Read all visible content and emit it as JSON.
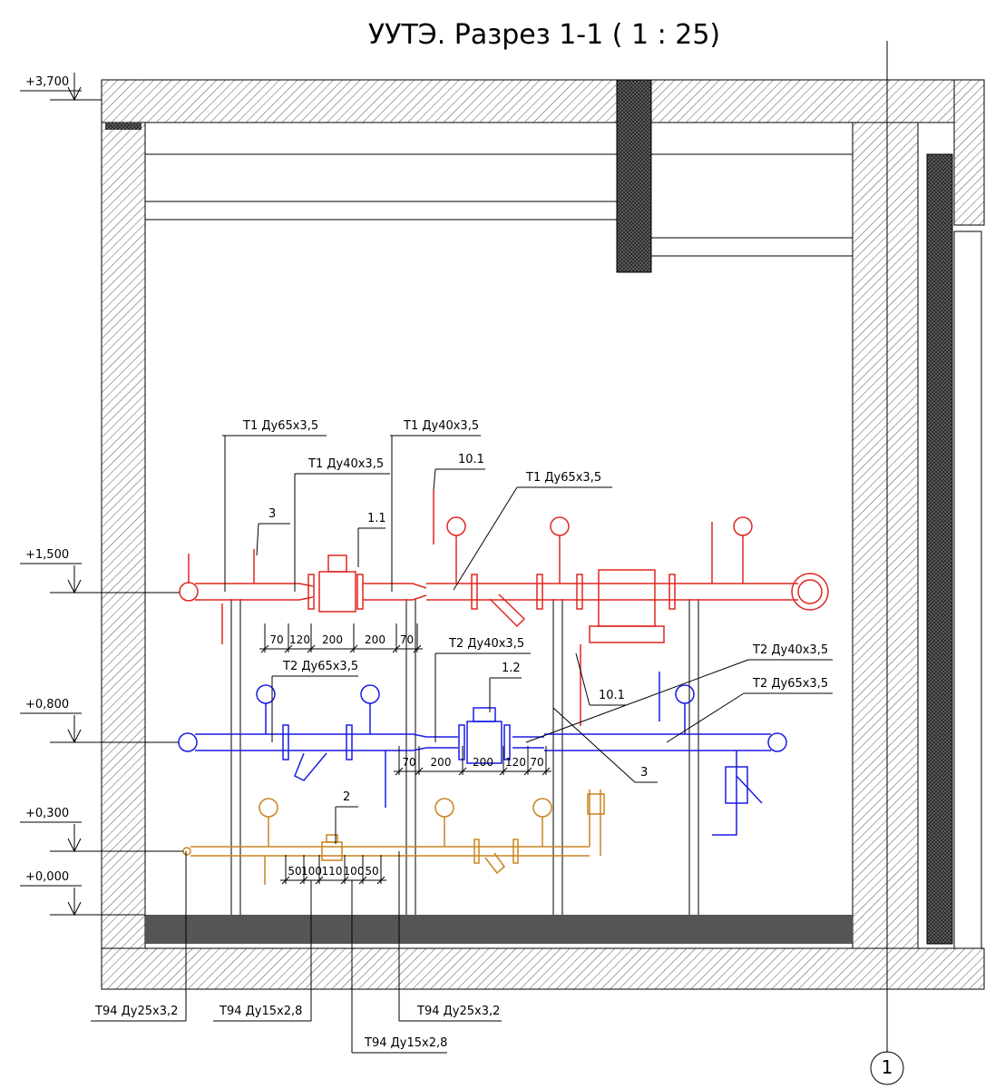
{
  "header": {
    "title": "УУТЭ. Разрез 1-1 ( 1 : 25)"
  },
  "levels": [
    "+3,700",
    "+1,500",
    "+0,800",
    "+0,300",
    "+0,000"
  ],
  "leaders": [
    "Т1 Ду65х3,5",
    "Т1 Ду40х3,5",
    "Т1 Ду40х3,5",
    "3",
    "1.1",
    "10.1",
    "Т1 Ду65х3,5",
    "Т2 Ду40х3,5",
    "Т2 Ду65х3,5",
    "1.2",
    "10.1",
    "Т2 Ду40х3,5",
    "Т2 Ду65х3,5",
    "3",
    "2",
    "Т94 Ду25х3,2",
    "Т94 Ду15х2,8",
    "Т94 Ду15х2,8",
    "Т94 Ду25х3,2"
  ],
  "dimensions": {
    "t1": [
      70,
      120,
      200,
      200,
      70
    ],
    "t2": [
      70,
      200,
      200,
      120,
      70
    ],
    "t94": [
      50,
      100,
      110,
      100,
      50
    ]
  },
  "axis": {
    "label": "1"
  }
}
